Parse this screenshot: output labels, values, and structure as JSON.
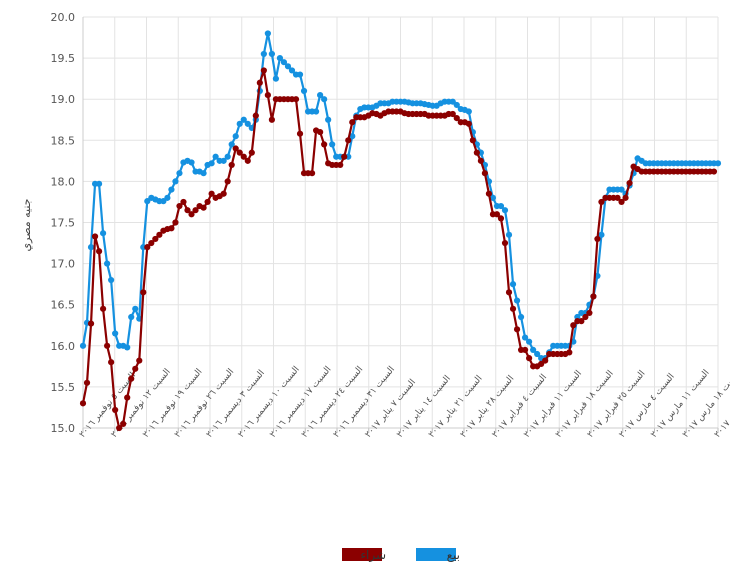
{
  "chart_data": {
    "type": "line",
    "ylabel": "جنيه مصري",
    "ylim": [
      15.0,
      20.0
    ],
    "yticks": [
      "15.0",
      "15.5",
      "16.0",
      "16.5",
      "17.0",
      "17.5",
      "18.0",
      "18.5",
      "19.0",
      "19.5",
      "20.0"
    ],
    "grid": true,
    "legend_position": "bottom",
    "xtick_labels": [
      "السبت ٥ نوفمبر ٢٠١٦",
      "السبت ١٢ نوفمبر ٢٠١٦",
      "السبت ١٩ نوفمبر ٢٠١٦",
      "السبت ٢٦ نوفمبر ٢٠١٦",
      "السبت ٣ ديسمبر ٢٠١٦",
      "السبت ١٠ ديسمبر ٢٠١٦",
      "السبت ١٧ ديسمبر ٢٠١٦",
      "السبت ٢٤ ديسمبر ٢٠١٦",
      "السبت ٣١ ديسمبر ٢٠١٦",
      "السبت ٧ يناير ٢٠١٧",
      "السبت ١٤ يناير ٢٠١٧",
      "السبت ٢١ يناير ٢٠١٧",
      "السبت ٢٨ يناير ٢٠١٧",
      "السبت ٤ فبراير ٢٠١٧",
      "السبت ١١ فبراير ٢٠١٧",
      "السبت ١٨ فبراير ٢٠١٧",
      "السبت ٢٥ فبراير ٢٠١٧",
      "السبت ٤ مارس ٢٠١٧",
      "السبت ١١ مارس ٢٠١٧",
      "السبت ١٨ مارس ٢٠١٧",
      "الخميس ٣٠ مارس ٢٠١٧"
    ],
    "series": [
      {
        "name": "بيع",
        "color": "#1591e0",
        "values": [
          16.0,
          16.28,
          17.2,
          17.97,
          17.97,
          17.37,
          17.0,
          16.8,
          16.15,
          16.0,
          16.0,
          15.98,
          16.35,
          16.45,
          16.33,
          17.2,
          17.76,
          17.8,
          17.78,
          17.76,
          17.76,
          17.8,
          17.9,
          18.0,
          18.1,
          18.23,
          18.25,
          18.23,
          18.12,
          18.12,
          18.1,
          18.2,
          18.22,
          18.3,
          18.25,
          18.25,
          18.3,
          18.45,
          18.55,
          18.7,
          18.75,
          18.7,
          18.65,
          18.75,
          19.1,
          19.55,
          19.8,
          19.55,
          19.25,
          19.5,
          19.45,
          19.4,
          19.35,
          19.3,
          19.3,
          19.1,
          18.85,
          18.85,
          18.85,
          19.05,
          19.0,
          18.75,
          18.45,
          18.3,
          18.3,
          18.3,
          18.3,
          18.55,
          18.8,
          18.88,
          18.9,
          18.9,
          18.9,
          18.92,
          18.95,
          18.95,
          18.95,
          18.97,
          18.97,
          18.97,
          18.97,
          18.96,
          18.95,
          18.95,
          18.95,
          18.94,
          18.93,
          18.92,
          18.92,
          18.95,
          18.97,
          18.97,
          18.97,
          18.93,
          18.88,
          18.87,
          18.85,
          18.6,
          18.45,
          18.35,
          18.2,
          18.0,
          17.8,
          17.7,
          17.7,
          17.65,
          17.35,
          16.75,
          16.55,
          16.35,
          16.1,
          16.05,
          15.95,
          15.9,
          15.85,
          15.85,
          15.92,
          16.0,
          16.0,
          16.0,
          16.0,
          16.0,
          16.05,
          16.35,
          16.4,
          16.4,
          16.5,
          16.6,
          16.85,
          17.35,
          17.8,
          17.9,
          17.9,
          17.9,
          17.9,
          17.85,
          17.95,
          18.1,
          18.28,
          18.25,
          18.22,
          18.22,
          18.22,
          18.22,
          18.22,
          18.22,
          18.22,
          18.22,
          18.22,
          18.22,
          18.22,
          18.22,
          18.22,
          18.22,
          18.22,
          18.22,
          18.22,
          18.22,
          18.22
        ]
      },
      {
        "name": "شراء",
        "color": "#8b0000",
        "values": [
          15.3,
          15.55,
          16.27,
          17.33,
          17.15,
          16.45,
          16.0,
          15.8,
          15.22,
          15.0,
          15.05,
          15.37,
          15.6,
          15.72,
          15.82,
          16.65,
          17.2,
          17.25,
          17.3,
          17.35,
          17.4,
          17.42,
          17.43,
          17.5,
          17.7,
          17.75,
          17.65,
          17.6,
          17.65,
          17.7,
          17.68,
          17.75,
          17.85,
          17.8,
          17.82,
          17.85,
          18.0,
          18.2,
          18.4,
          18.35,
          18.3,
          18.25,
          18.35,
          18.8,
          19.2,
          19.35,
          19.05,
          18.75,
          19.0,
          19.0,
          19.0,
          19.0,
          19.0,
          19.0,
          18.58,
          18.1,
          18.1,
          18.1,
          18.62,
          18.6,
          18.45,
          18.22,
          18.2,
          18.2,
          18.2,
          18.3,
          18.5,
          18.72,
          18.78,
          18.78,
          18.78,
          18.8,
          18.83,
          18.82,
          18.8,
          18.83,
          18.85,
          18.85,
          18.85,
          18.85,
          18.83,
          18.82,
          18.82,
          18.82,
          18.82,
          18.82,
          18.8,
          18.8,
          18.8,
          18.8,
          18.8,
          18.82,
          18.82,
          18.77,
          18.72,
          18.72,
          18.7,
          18.5,
          18.35,
          18.25,
          18.1,
          17.85,
          17.6,
          17.6,
          17.55,
          17.25,
          16.65,
          16.45,
          16.2,
          15.95,
          15.95,
          15.85,
          15.75,
          15.75,
          15.78,
          15.82,
          15.9,
          15.9,
          15.9,
          15.9,
          15.9,
          15.92,
          16.25,
          16.3,
          16.3,
          16.35,
          16.4,
          16.6,
          17.3,
          17.75,
          17.8,
          17.8,
          17.8,
          17.8,
          17.75,
          17.8,
          17.98,
          18.18,
          18.15,
          18.12,
          18.12,
          18.12,
          18.12,
          18.12,
          18.12,
          18.12,
          18.12,
          18.12,
          18.12,
          18.12,
          18.12,
          18.12,
          18.12,
          18.12,
          18.12,
          18.12,
          18.12,
          18.12
        ]
      }
    ]
  }
}
